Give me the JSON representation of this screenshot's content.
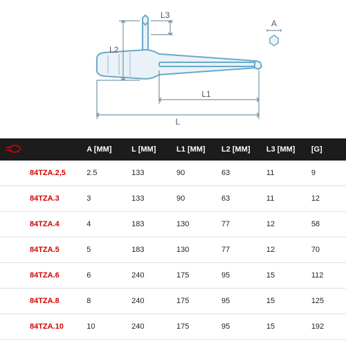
{
  "diagram": {
    "labels": {
      "A": "A",
      "L": "L",
      "L1": "L1",
      "L2": "L2",
      "L3": "L3"
    },
    "stroke_main": "#6aa8c9",
    "stroke_dim": "#5a7d90",
    "fill_bg": "#ffffff",
    "label_fontsize": 12,
    "label_color": "#556"
  },
  "table": {
    "header_bg": "#1c1c1c",
    "header_fg": "#ffffff",
    "row_border": "#e0e0e0",
    "code_color": "#d30000",
    "value_color": "#222222",
    "fontsize": 11,
    "logo_color": "#d30000",
    "columns": [
      "",
      "A [MM]",
      "L [MM]",
      "L1 [MM]",
      "L2 [MM]",
      "L3 [MM]",
      "[G]"
    ],
    "rows": [
      {
        "code": "84TZA.2,5",
        "A": "2.5",
        "L": "133",
        "L1": "90",
        "L2": "63",
        "L3": "11",
        "G": "9"
      },
      {
        "code": "84TZA.3",
        "A": "3",
        "L": "133",
        "L1": "90",
        "L2": "63",
        "L3": "11",
        "G": "12"
      },
      {
        "code": "84TZA.4",
        "A": "4",
        "L": "183",
        "L1": "130",
        "L2": "77",
        "L3": "12",
        "G": "58"
      },
      {
        "code": "84TZA.5",
        "A": "5",
        "L": "183",
        "L1": "130",
        "L2": "77",
        "L3": "12",
        "G": "70"
      },
      {
        "code": "84TZA.6",
        "A": "6",
        "L": "240",
        "L1": "175",
        "L2": "95",
        "L3": "15",
        "G": "112"
      },
      {
        "code": "84TZA.8",
        "A": "8",
        "L": "240",
        "L1": "175",
        "L2": "95",
        "L3": "15",
        "G": "125"
      },
      {
        "code": "84TZA.10",
        "A": "10",
        "L": "240",
        "L1": "175",
        "L2": "95",
        "L3": "15",
        "G": "192"
      }
    ]
  }
}
